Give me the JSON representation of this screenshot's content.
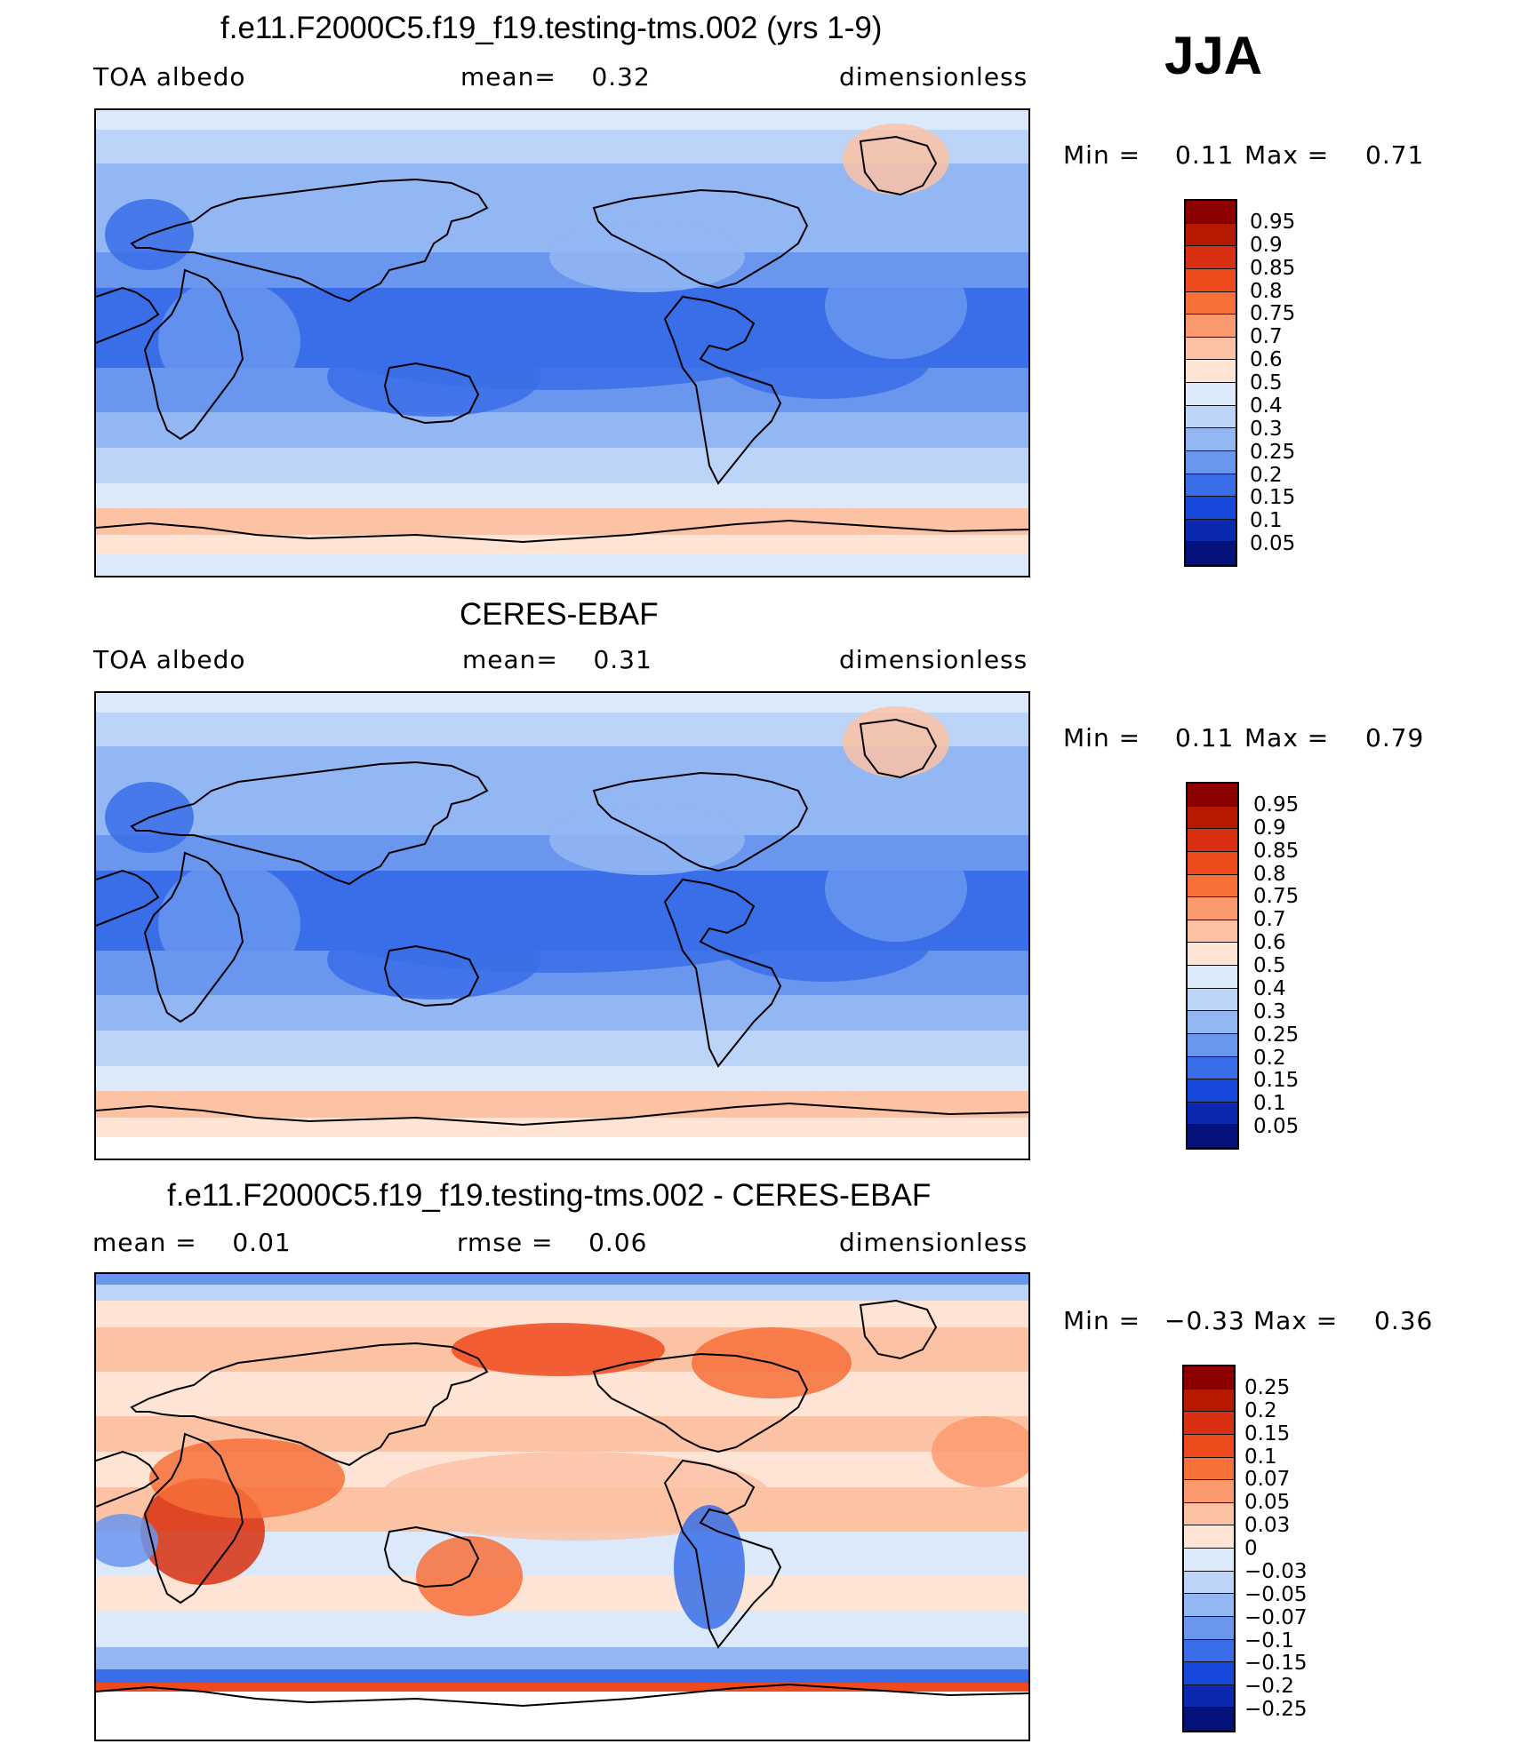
{
  "season": "JJA",
  "panels": [
    {
      "id": "model",
      "title": "f.e11.F2000C5.f19_f19.testing-tms.002 (yrs 1-9)",
      "left_label": "TOA albedo",
      "center_label": "mean=    0.32",
      "right_label": "dimensionless",
      "min_label": "Min =",
      "min_value": "0.11",
      "max_label": "Max =",
      "max_value": "0.71"
    },
    {
      "id": "obs",
      "title": "CERES-EBAF",
      "left_label": "TOA albedo",
      "center_label": "mean=    0.31",
      "right_label": "dimensionless",
      "min_label": "Min =",
      "min_value": "0.11",
      "max_label": "Max =",
      "max_value": "0.79"
    },
    {
      "id": "diff",
      "title": "f.e11.F2000C5.f19_f19.testing-tms.002 - CERES-EBAF",
      "left_label": "mean =    0.01",
      "center_label": "rmse =    0.06",
      "right_label": "dimensionless",
      "min_label": "Min =",
      "min_value": "−0.33",
      "max_label": "Max =",
      "max_value": "0.36"
    }
  ],
  "chart_data": [
    {
      "type": "heatmap",
      "title": "f.e11.F2000C5.f19_f19.testing-tms.002 (yrs 1-9)",
      "variable": "TOA albedo",
      "units": "dimensionless",
      "mean": 0.32,
      "min": 0.11,
      "max": 0.71,
      "colorbar_levels": [
        "0.95",
        "0.9",
        "0.85",
        "0.8",
        "0.75",
        "0.7",
        "0.6",
        "0.5",
        "0.4",
        "0.3",
        "0.25",
        "0.2",
        "0.15",
        "0.1",
        "0.05"
      ],
      "colorbar_colors": [
        "#8c0000",
        "#b81a00",
        "#d83010",
        "#ee4a1e",
        "#f7703a",
        "#fb9a6e",
        "#fbc2a4",
        "#fde4d4",
        "#dbe9fb",
        "#bcd4f8",
        "#93b7f3",
        "#6a96ee",
        "#3a6ee8",
        "#1748dc",
        "#0a28b0",
        "#04127a"
      ],
      "colorbar_labels": [
        "0.95",
        "0.9",
        "0.85",
        "0.8",
        "0.75",
        "0.7",
        "0.6",
        "0.5",
        "0.4",
        "0.3",
        "0.25",
        "0.2",
        "0.15",
        "0.1",
        "0.05"
      ]
    },
    {
      "type": "heatmap",
      "title": "CERES-EBAF",
      "variable": "TOA albedo",
      "units": "dimensionless",
      "mean": 0.31,
      "min": 0.11,
      "max": 0.79,
      "colorbar_colors": [
        "#8c0000",
        "#b81a00",
        "#d83010",
        "#ee4a1e",
        "#f7703a",
        "#fb9a6e",
        "#fbc2a4",
        "#fde4d4",
        "#dbe9fb",
        "#bcd4f8",
        "#93b7f3",
        "#6a96ee",
        "#3a6ee8",
        "#1748dc",
        "#0a28b0",
        "#04127a"
      ],
      "colorbar_labels": [
        "0.95",
        "0.9",
        "0.85",
        "0.8",
        "0.75",
        "0.7",
        "0.6",
        "0.5",
        "0.4",
        "0.3",
        "0.25",
        "0.2",
        "0.15",
        "0.1",
        "0.05"
      ]
    },
    {
      "type": "heatmap",
      "title": "f.e11.F2000C5.f19_f19.testing-tms.002 - CERES-EBAF",
      "units": "dimensionless",
      "mean": 0.01,
      "rmse": 0.06,
      "min": -0.33,
      "max": 0.36,
      "colorbar_colors": [
        "#8c0000",
        "#b81a00",
        "#d83010",
        "#ee4a1e",
        "#f7703a",
        "#fb9a6e",
        "#fbc2a4",
        "#fde4d4",
        "#dbe9fb",
        "#bcd4f8",
        "#93b7f3",
        "#6a96ee",
        "#3a6ee8",
        "#1748dc",
        "#0a28b0",
        "#04127a"
      ],
      "colorbar_labels": [
        "0.25",
        "0.2",
        "0.15",
        "0.1",
        "0.07",
        "0.05",
        "0.03",
        "0",
        "−0.03",
        "−0.05",
        "−0.07",
        "−0.1",
        "−0.15",
        "−0.2",
        "−0.25"
      ]
    }
  ]
}
